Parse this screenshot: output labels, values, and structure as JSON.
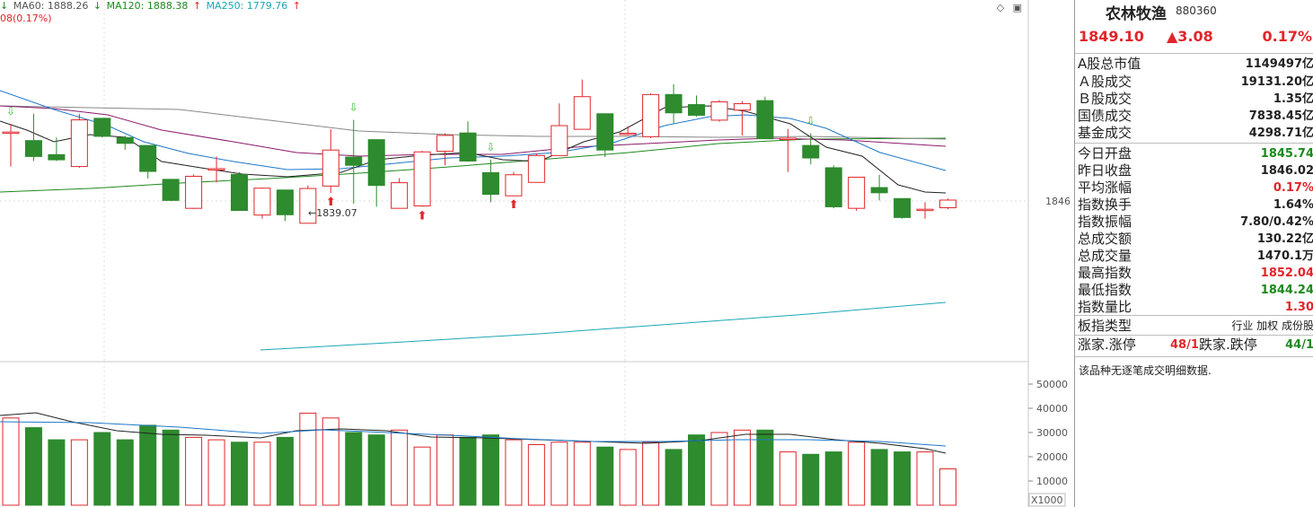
{
  "ma_legend": {
    "ma60": {
      "label": "MA60: 1888.26",
      "arrow": "↓",
      "color": "#555555"
    },
    "ma120": {
      "label": "MA120: 1888.38",
      "arrow": "↑",
      "color": "#1d8a1d"
    },
    "ma250": {
      "label": "MA250: 1779.76",
      "arrow": "↑",
      "color": "#1aa7b5"
    }
  },
  "sub_label": "08(0.17%)",
  "price_tick": "1846",
  "low_annotation": "←1839.07",
  "volume_axis": [
    "50000",
    "40000",
    "30000",
    "20000",
    "10000"
  ],
  "volume_unit": "X1000",
  "panel": {
    "title": "农林牧渔",
    "code": "880360",
    "price": "1849.10",
    "change": "▲3.08",
    "change_pct": "0.17%",
    "rows": [
      {
        "label": "A股总市值",
        "value": "1149497亿",
        "color": "black"
      },
      {
        "label": "Ａ股成交",
        "value": "19131.20亿",
        "color": "black"
      },
      {
        "label": "Ｂ股成交",
        "value": "1.35亿",
        "color": "black"
      },
      {
        "label": "国债成交",
        "value": "7838.45亿",
        "color": "black"
      },
      {
        "label": "基金成交",
        "value": "4298.71亿",
        "color": "black"
      },
      {
        "label": "今日开盘",
        "value": "1845.74",
        "color": "green"
      },
      {
        "label": "昨日收盘",
        "value": "1846.02",
        "color": "black"
      },
      {
        "label": "平均涨幅",
        "value": "0.17%",
        "color": "red"
      },
      {
        "label": "指数换手",
        "value": "1.64%",
        "color": "black"
      },
      {
        "label": "指数振幅",
        "value": "7.80/0.42%",
        "color": "black"
      },
      {
        "label": "总成交额",
        "value": "130.22亿",
        "color": "black"
      },
      {
        "label": "总成交量",
        "value": "1470.1万",
        "color": "black"
      },
      {
        "label": "最高指数",
        "value": "1852.04",
        "color": "red"
      },
      {
        "label": "最低指数",
        "value": "1844.24",
        "color": "green"
      },
      {
        "label": "指数量比",
        "value": "1.30",
        "color": "red"
      }
    ],
    "type_label": "板指类型",
    "type_value": "行业 加权 成份股",
    "adv_label": "涨家.涨停",
    "adv_value": "48/1",
    "dec_label": "跌家.跌停",
    "dec_value": "44/1",
    "note": "该品种无逐笔成交明细数据."
  },
  "colors": {
    "up": "#e0262b",
    "down": "#2e8b2e",
    "ma5": "#222222",
    "ma10": "#1e78c8",
    "ma20": "#8b1a6b",
    "ma60": "#888888",
    "ma120": "#1d8a1d",
    "ma250": "#1aa7b5"
  },
  "candles": [
    {
      "o": 1868.6,
      "h": 1871.3,
      "l": 1857.3,
      "c": 1868.6,
      "d": "up"
    },
    {
      "o": 1865.8,
      "h": 1874.6,
      "l": 1859.1,
      "c": 1860.6,
      "d": "down"
    },
    {
      "o": 1861.2,
      "h": 1866.8,
      "l": 1859.1,
      "c": 1859.5,
      "d": "down"
    },
    {
      "o": 1857.3,
      "h": 1874.6,
      "l": 1856.9,
      "c": 1872.6,
      "d": "up"
    },
    {
      "o": 1873.1,
      "h": 1873.1,
      "l": 1866.8,
      "c": 1867.2,
      "d": "down"
    },
    {
      "o": 1866.8,
      "h": 1867.4,
      "l": 1862.8,
      "c": 1864.9,
      "d": "down"
    },
    {
      "o": 1864.2,
      "h": 1864.2,
      "l": 1853.4,
      "c": 1855.7,
      "d": "down"
    },
    {
      "o": 1853.1,
      "h": 1853.1,
      "l": 1846.0,
      "c": 1846.2,
      "d": "down"
    },
    {
      "o": 1843.6,
      "h": 1854.7,
      "l": 1843.4,
      "c": 1854.1,
      "d": "up"
    },
    {
      "o": 1856.6,
      "h": 1860.6,
      "l": 1852.1,
      "c": 1856.6,
      "d": "up"
    },
    {
      "o": 1854.7,
      "h": 1855.5,
      "l": 1842.9,
      "c": 1842.9,
      "d": "down"
    },
    {
      "o": 1841.4,
      "h": 1850.4,
      "l": 1840.2,
      "c": 1850.2,
      "d": "up"
    },
    {
      "o": 1849.6,
      "h": 1849.6,
      "l": 1839.4,
      "c": 1841.5,
      "d": "down"
    },
    {
      "o": 1838.7,
      "h": 1851.1,
      "l": 1838.7,
      "c": 1850.1,
      "d": "up"
    },
    {
      "o": 1850.9,
      "h": 1869.5,
      "l": 1848.6,
      "c": 1862.7,
      "d": "up"
    },
    {
      "o": 1860.4,
      "h": 1872.6,
      "l": 1845.1,
      "c": 1857.7,
      "d": "down"
    },
    {
      "o": 1866.1,
      "h": 1866.1,
      "l": 1844.1,
      "c": 1851.1,
      "d": "down"
    },
    {
      "o": 1843.6,
      "h": 1853.5,
      "l": 1843.6,
      "c": 1852.0,
      "d": "up"
    },
    {
      "o": 1844.4,
      "h": 1862.4,
      "l": 1844.1,
      "c": 1862.1,
      "d": "up"
    },
    {
      "o": 1862.3,
      "h": 1868.2,
      "l": 1857.7,
      "c": 1867.5,
      "d": "up"
    },
    {
      "o": 1868.3,
      "h": 1872.1,
      "l": 1858.9,
      "c": 1859.1,
      "d": "down"
    },
    {
      "o": 1855.3,
      "h": 1859.6,
      "l": 1845.6,
      "c": 1848.2,
      "d": "down"
    },
    {
      "o": 1847.7,
      "h": 1855.5,
      "l": 1847.7,
      "c": 1854.6,
      "d": "up"
    },
    {
      "o": 1852.1,
      "h": 1861.6,
      "l": 1852.1,
      "c": 1860.9,
      "d": "up"
    },
    {
      "o": 1860.9,
      "h": 1878.0,
      "l": 1860.9,
      "c": 1870.7,
      "d": "up"
    },
    {
      "o": 1869.5,
      "h": 1885.8,
      "l": 1869.5,
      "c": 1880.2,
      "d": "up"
    },
    {
      "o": 1874.6,
      "h": 1874.6,
      "l": 1860.4,
      "c": 1862.7,
      "d": "down"
    },
    {
      "o": 1868.2,
      "h": 1870.5,
      "l": 1867.5,
      "c": 1868.2,
      "d": "up"
    },
    {
      "o": 1867.1,
      "h": 1881.3,
      "l": 1866.6,
      "c": 1880.9,
      "d": "up"
    },
    {
      "o": 1880.9,
      "h": 1884.3,
      "l": 1871.5,
      "c": 1874.9,
      "d": "down"
    },
    {
      "o": 1877.6,
      "h": 1880.6,
      "l": 1873.7,
      "c": 1874.1,
      "d": "down"
    },
    {
      "o": 1872.5,
      "h": 1879.1,
      "l": 1872.0,
      "c": 1878.5,
      "d": "up"
    },
    {
      "o": 1877.9,
      "h": 1878.7,
      "l": 1867.5,
      "c": 1875.8,
      "d": "up"
    },
    {
      "o": 1878.9,
      "h": 1880.2,
      "l": 1866.4,
      "c": 1866.4,
      "d": "down"
    },
    {
      "o": 1866.6,
      "h": 1869.6,
      "l": 1855.5,
      "c": 1866.6,
      "d": "up"
    },
    {
      "o": 1864.2,
      "h": 1868.2,
      "l": 1858.0,
      "c": 1860.1,
      "d": "down"
    },
    {
      "o": 1856.9,
      "h": 1857.7,
      "l": 1843.6,
      "c": 1844.1,
      "d": "down"
    },
    {
      "o": 1843.6,
      "h": 1853.8,
      "l": 1842.8,
      "c": 1853.8,
      "d": "up"
    },
    {
      "o": 1850.4,
      "h": 1854.6,
      "l": 1846.2,
      "c": 1848.7,
      "d": "down"
    },
    {
      "o": 1846.8,
      "h": 1846.8,
      "l": 1840.2,
      "c": 1840.6,
      "d": "down"
    },
    {
      "o": 1843.3,
      "h": 1845.6,
      "l": 1840.2,
      "c": 1843.3,
      "d": "up"
    },
    {
      "o": 1843.8,
      "h": 1846.8,
      "l": 1843.3,
      "c": 1846.3,
      "d": "up"
    }
  ],
  "volumes": [
    36,
    32,
    27,
    27,
    30,
    27,
    33,
    31,
    28,
    27,
    26,
    26,
    28,
    38,
    36,
    30,
    29,
    31,
    24,
    29,
    28,
    29,
    27,
    25,
    26,
    26,
    24,
    23,
    26,
    23,
    29,
    30,
    31,
    31,
    22,
    21,
    22,
    26,
    23,
    22,
    22,
    15
  ],
  "markers": {
    "down_arrows": [
      0,
      15,
      21,
      35
    ],
    "up_arrows": [
      14,
      18,
      22
    ]
  }
}
